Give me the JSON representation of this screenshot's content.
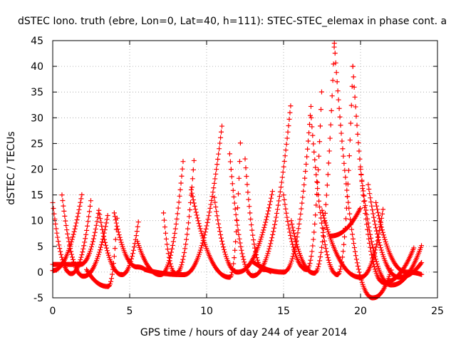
{
  "chart_data": {
    "type": "scatter",
    "title": "dSTEC Iono. truth (ebre, Lon=0, Lat=40, h=111): STEC-STEC_elemax in phase cont. a",
    "xlabel": "GPS time / hours of day 244 of year 2014",
    "ylabel": "dSTEC  / TECUs",
    "xlim": [
      0,
      25
    ],
    "ylim": [
      -5,
      45
    ],
    "xticks": [
      0,
      5,
      10,
      15,
      20,
      25
    ],
    "yticks": [
      -5,
      0,
      5,
      10,
      15,
      20,
      25,
      30,
      35,
      40,
      45
    ],
    "grid": true,
    "marker": "+",
    "color": "#ff0000",
    "arcs": [
      {
        "start": 0.0,
        "peak": 1.2,
        "end": 2.5,
        "y_start": 13.5,
        "y_peak": -0.3,
        "y_end": 14.5
      },
      {
        "start": 0.0,
        "peak": 1.8,
        "end": 3.0,
        "y_start": 1.5,
        "y_peak": 1.5,
        "y_end": 12.0
      },
      {
        "start": 0.6,
        "peak": 2.0,
        "end": 3.6,
        "y_start": 15.0,
        "y_peak": -0.8,
        "y_end": 11.5
      },
      {
        "start": 0.0,
        "peak": 0.0,
        "end": 1.9,
        "y_start": 0.3,
        "y_peak": 0.3,
        "y_end": 15.2
      },
      {
        "start": 2.2,
        "peak": 3.6,
        "end": 4.2,
        "y_start": 0.5,
        "y_peak": -2.8,
        "y_end": 11.5
      },
      {
        "start": 3.0,
        "peak": 4.5,
        "end": 5.6,
        "y_start": 12.0,
        "y_peak": -0.5,
        "y_end": 10.5
      },
      {
        "start": 4.0,
        "peak": 5.5,
        "end": 6.0,
        "y_start": 11.5,
        "y_peak": 1.0,
        "y_end": 0.5
      },
      {
        "start": 5.5,
        "peak": 7.0,
        "end": 8.5,
        "y_start": 6.0,
        "y_peak": -0.5,
        "y_end": 22.5
      },
      {
        "start": 7.2,
        "peak": 8.0,
        "end": 9.2,
        "y_start": 11.5,
        "y_peak": -0.3,
        "y_end": 22.5
      },
      {
        "start": 6.0,
        "peak": 8.5,
        "end": 11.0,
        "y_start": 0.5,
        "y_peak": -0.5,
        "y_end": 28.5
      },
      {
        "start": 9.0,
        "peak": 11.5,
        "end": 12.2,
        "y_start": 16.0,
        "y_peak": -1.0,
        "y_end": 25.5
      },
      {
        "start": 10.5,
        "peak": 12.0,
        "end": 14.3,
        "y_start": 14.5,
        "y_peak": 0.0,
        "y_end": 16.0
      },
      {
        "start": 11.5,
        "peak": 13.0,
        "end": 15.5,
        "y_start": 23.0,
        "y_peak": -0.7,
        "y_end": 33.5
      },
      {
        "start": 12.5,
        "peak": 13.7,
        "end": 14.2,
        "y_start": 22.0,
        "y_peak": 0.5,
        "y_end": 0.0
      },
      {
        "start": 13.0,
        "peak": 15.0,
        "end": 16.8,
        "y_start": 2.0,
        "y_peak": 0.0,
        "y_end": 33.0
      },
      {
        "start": 15.0,
        "peak": 16.5,
        "end": 17.5,
        "y_start": 15.0,
        "y_peak": 0.5,
        "y_end": 37.0
      },
      {
        "start": 15.5,
        "peak": 17.0,
        "end": 18.3,
        "y_start": 10.0,
        "y_peak": -0.2,
        "y_end": 44.5
      },
      {
        "start": 16.8,
        "peak": 18.5,
        "end": 19.5,
        "y_start": 30.0,
        "y_peak": -0.5,
        "y_end": 40.0
      },
      {
        "start": 17.5,
        "peak": 20.0,
        "end": 21.5,
        "y_start": 12.0,
        "y_peak": -1.0,
        "y_end": 13.0
      },
      {
        "start": 18.3,
        "peak": 20.8,
        "end": 22.0,
        "y_start": 44.5,
        "y_peak": -5.0,
        "y_end": 0.5
      },
      {
        "start": 19.5,
        "peak": 21.5,
        "end": 23.5,
        "y_start": 40.0,
        "y_peak": -2.0,
        "y_end": 5.0
      },
      {
        "start": 20.0,
        "peak": 22.0,
        "end": 24.0,
        "y_start": 20.0,
        "y_peak": -2.5,
        "y_end": 5.5
      },
      {
        "start": 20.5,
        "peak": 22.5,
        "end": 24.0,
        "y_start": 17.0,
        "y_peak": -1.0,
        "y_end": 2.0
      },
      {
        "start": 21.0,
        "peak": 23.0,
        "end": 24.0,
        "y_start": 13.5,
        "y_peak": 0.0,
        "y_end": -0.5
      },
      {
        "start": 18.0,
        "peak": 18.0,
        "end": 20.0,
        "y_start": 7.0,
        "y_peak": 7.0,
        "y_end": 12.5
      }
    ]
  }
}
